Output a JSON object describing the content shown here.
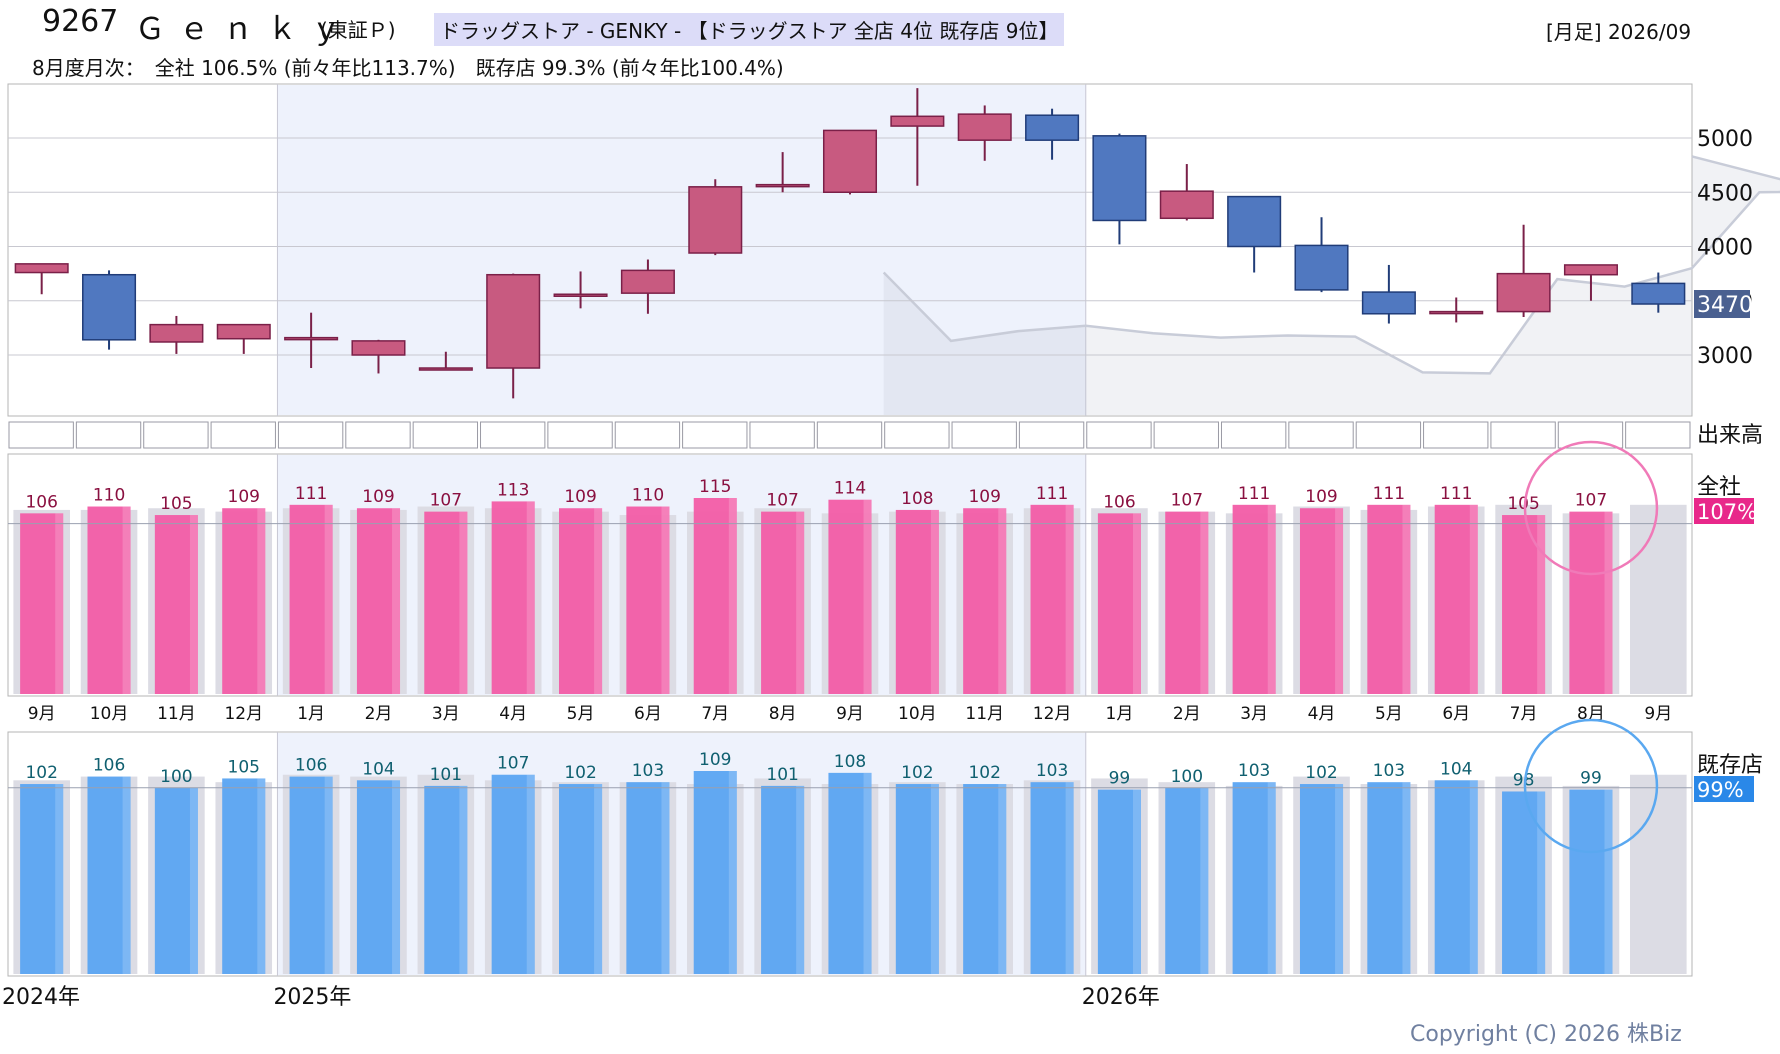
{
  "header": {
    "code": "9267",
    "name": "Ｇｅｎｋｙ",
    "market": "(東証Ｐ)",
    "sector": "ドラッグストア - GENKY - 【ドラッグストア 全店 4位 既存店 9位】",
    "period": "[月足] 2026/09",
    "summary": "8月度月次：　全社 106.5% (前々年比113.7%)　既存店 99.3% (前々年比100.4%)"
  },
  "copyright": "Copyright (C) 2026 株Biz",
  "colors": {
    "up_candle": "#c85a80",
    "down_candle": "#5078c0",
    "company_bar": "#f25ca6",
    "existing_bar": "#5aa4f2",
    "prev_year_bar": "#dcdce4",
    "company_badge": "#e8288a",
    "existing_badge": "#2a88e8",
    "price_badge": "#4a6090"
  },
  "chart_data": [
    {
      "type": "candlestick",
      "title": "",
      "x": [
        "2024-09",
        "2024-10",
        "2024-11",
        "2024-12",
        "2025-01",
        "2025-02",
        "2025-03",
        "2025-04",
        "2025-05",
        "2025-06",
        "2025-07",
        "2025-08",
        "2025-09",
        "2025-10",
        "2025-11",
        "2025-12",
        "2026-01",
        "2026-02",
        "2026-03",
        "2026-04",
        "2026-05",
        "2026-06",
        "2026-07",
        "2026-08",
        "2026-09"
      ],
      "open": [
        3760,
        3740,
        3120,
        3150,
        3160,
        3000,
        2880,
        2880,
        3560,
        3570,
        3940,
        4570,
        4500,
        5110,
        4980,
        5210,
        5020,
        4260,
        4460,
        4010,
        3580,
        3390,
        3400,
        3740,
        3660
      ],
      "high": [
        3840,
        3780,
        3360,
        3260,
        3390,
        3140,
        3030,
        3750,
        3770,
        3880,
        4620,
        4870,
        5070,
        5460,
        5300,
        5270,
        5040,
        4760,
        4460,
        4270,
        3830,
        3530,
        4200,
        3810,
        3760
      ],
      "low": [
        3560,
        3050,
        3010,
        3010,
        2880,
        2830,
        2870,
        2600,
        3430,
        3380,
        3920,
        4500,
        4480,
        4560,
        4790,
        4800,
        4020,
        4240,
        3760,
        3580,
        3290,
        3300,
        3350,
        3500,
        3390
      ],
      "close": [
        3840,
        3140,
        3280,
        3280,
        3160,
        3130,
        2880,
        3740,
        3560,
        3780,
        4550,
        4570,
        5070,
        5200,
        5220,
        4980,
        4240,
        4510,
        4000,
        3600,
        3380,
        3400,
        3750,
        3830,
        3470
      ],
      "overlay_line": {
        "from": "2025-10",
        "values": [
          3760,
          3130,
          3220,
          3270,
          3200,
          3160,
          3180,
          3170,
          2840,
          2830,
          3700,
          3630,
          3800,
          4500,
          4510,
          4830
        ]
      },
      "current_price": "3470",
      "yticks": [
        "3000",
        "3500",
        "4000",
        "4500",
        "5000"
      ],
      "ylim": [
        2500,
        5500
      ],
      "volume_label": "出来高",
      "grid": true
    },
    {
      "type": "bar",
      "title": "全社",
      "badge": "107%",
      "categories": [
        "9月",
        "10月",
        "11月",
        "12月",
        "1月",
        "2月",
        "3月",
        "4月",
        "5月",
        "6月",
        "7月",
        "8月",
        "9月",
        "10月",
        "11月",
        "12月",
        "1月",
        "2月",
        "3月",
        "4月",
        "5月",
        "6月",
        "7月",
        "8月",
        "9月"
      ],
      "values": [
        106,
        110,
        105,
        109,
        111,
        109,
        107,
        113,
        109,
        110,
        115,
        107,
        114,
        108,
        109,
        111,
        106,
        107,
        111,
        109,
        111,
        111,
        105,
        107,
        null
      ],
      "value_labels": [
        "106",
        "110",
        "105",
        "109",
        "111",
        "109",
        "107",
        "113",
        "109",
        "110",
        "115",
        "107",
        "114",
        "108",
        "109",
        "111",
        "106",
        "107",
        "111",
        "109",
        "111",
        "111",
        "105",
        "107",
        ""
      ],
      "prev_year_values": [
        108,
        108,
        109,
        107,
        109,
        108,
        110,
        109,
        107,
        105,
        107,
        109,
        106,
        107,
        106,
        109,
        109,
        107,
        106,
        110,
        108,
        110,
        111,
        106,
        111
      ]
    },
    {
      "type": "bar",
      "title": "既存店",
      "badge": "99%",
      "values": [
        102,
        106,
        100,
        105,
        106,
        104,
        101,
        107,
        102,
        103,
        109,
        101,
        108,
        102,
        102,
        103,
        99,
        100,
        103,
        102,
        103,
        104,
        98,
        99,
        null
      ],
      "value_labels": [
        "102",
        "106",
        "100",
        "105",
        "106",
        "104",
        "101",
        "107",
        "102",
        "103",
        "109",
        "101",
        "108",
        "102",
        "102",
        "103",
        "99",
        "100",
        "103",
        "102",
        "103",
        "104",
        "98",
        "99",
        ""
      ],
      "prev_year_values": [
        104,
        106,
        106,
        103,
        107,
        106,
        107,
        104,
        103,
        103,
        102,
        105,
        102,
        103,
        102,
        104,
        105,
        103,
        101,
        106,
        102,
        104,
        106,
        101,
        107
      ],
      "year_labels": [
        {
          "label": "2024年",
          "at": 0
        },
        {
          "label": "2025年",
          "at": 4
        },
        {
          "label": "2026年",
          "at": 16
        }
      ]
    }
  ]
}
